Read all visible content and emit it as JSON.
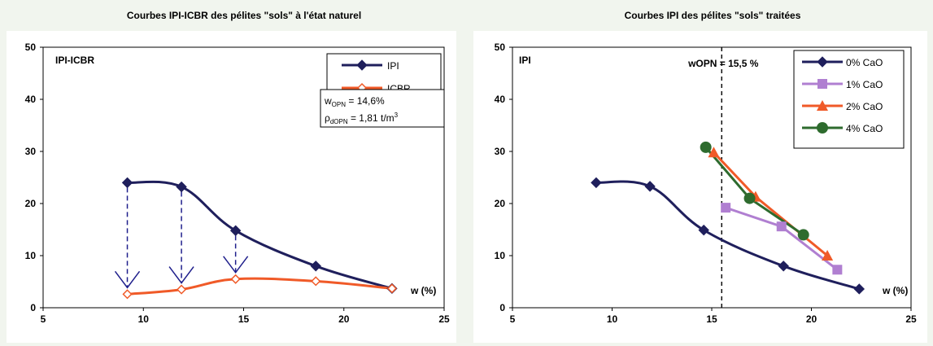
{
  "chart_data": [
    {
      "type": "line",
      "title": "Courbes IPI-ICBR des pélites \"sols\" à l'état naturel",
      "ylabel": "IPI-ICBR",
      "xlabel": "w (%)",
      "xlim": [
        5,
        25
      ],
      "ylim": [
        0,
        50
      ],
      "xticks": [
        "5",
        "10",
        "15",
        "20",
        "25"
      ],
      "yticks": [
        "0",
        "10",
        "20",
        "30",
        "40",
        "50"
      ],
      "grid": false,
      "legend_position": "top-right",
      "series": [
        {
          "name": "IPI",
          "color": "#1f1f5c",
          "marker": "diamond-filled",
          "points": [
            [
              9.2,
              24
            ],
            [
              11.9,
              23.2
            ],
            [
              14.6,
              14.8
            ],
            [
              18.6,
              8
            ],
            [
              22.4,
              3.7
            ]
          ]
        },
        {
          "name": "ICBR",
          "color": "#f05a28",
          "marker": "diamond-open",
          "points": [
            [
              9.2,
              2.6
            ],
            [
              11.9,
              3.5
            ],
            [
              14.6,
              5.5
            ],
            [
              18.6,
              5.1
            ],
            [
              22.4,
              3.7
            ]
          ]
        }
      ],
      "arrows": [
        {
          "x": 9.2,
          "from": 24,
          "to": 2.6
        },
        {
          "x": 11.9,
          "from": 23.2,
          "to": 3.5
        },
        {
          "x": 14.6,
          "from": 14.8,
          "to": 5.5
        }
      ],
      "annotation": {
        "line1_main": "w",
        "line1_sub": "OPN",
        "line1_rest": " = 14,6%",
        "line2_main": "ρ",
        "line2_sub": "dOPN",
        "line2_rest": " = 1,81 t/m",
        "line2_sup": "3"
      }
    },
    {
      "type": "line",
      "title": "Courbes IPI des pélites \"sols\" traitées",
      "ylabel": "IPI",
      "xlabel": "w (%)",
      "xlim": [
        5,
        25
      ],
      "ylim": [
        0,
        50
      ],
      "xticks": [
        "5",
        "10",
        "15",
        "20",
        "25"
      ],
      "yticks": [
        "0",
        "10",
        "20",
        "30",
        "40",
        "50"
      ],
      "grid": false,
      "legend_position": "top-right",
      "vline": {
        "x": 15.5,
        "label": "wOPN = 15,5 %"
      },
      "series": [
        {
          "name": "0% CaO",
          "color": "#1f1f5c",
          "marker": "diamond",
          "points": [
            [
              9.2,
              24
            ],
            [
              11.9,
              23.3
            ],
            [
              14.6,
              14.9
            ],
            [
              18.6,
              8
            ],
            [
              22.4,
              3.6
            ]
          ]
        },
        {
          "name": "1% CaO",
          "color": "#b07fd1",
          "marker": "square",
          "points": [
            [
              15.7,
              19.2
            ],
            [
              18.5,
              15.6
            ],
            [
              21.3,
              7.3
            ]
          ]
        },
        {
          "name": "2% CaO",
          "color": "#f05a28",
          "marker": "triangle",
          "points": [
            [
              15.1,
              29.8
            ],
            [
              17.2,
              21.3
            ],
            [
              20.8,
              10
            ]
          ]
        },
        {
          "name": "4% CaO",
          "color": "#2e6b2e",
          "marker": "circle",
          "points": [
            [
              14.7,
              30.8
            ],
            [
              16.9,
              21
            ],
            [
              19.6,
              14
            ]
          ]
        }
      ]
    }
  ]
}
